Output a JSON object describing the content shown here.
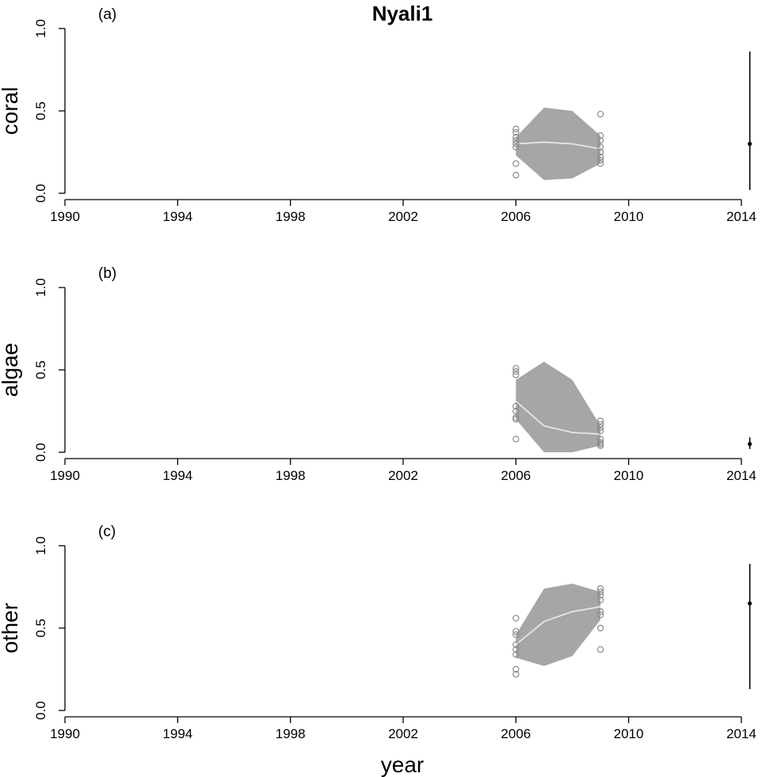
{
  "title": "Nyali1",
  "xlabel": "year",
  "colors": {
    "band": "#a6a6a6",
    "median_line": "#e6e6e6",
    "observed_points": "#8c8c8c",
    "estimate": "#000000"
  },
  "chart_data": [
    {
      "type": "area",
      "panel_label": "(a)",
      "ylabel": "coral",
      "xlim": [
        1990,
        2014
      ],
      "ylim": [
        0,
        1
      ],
      "x_ticks": [
        "1990",
        "1994",
        "1998",
        "2002",
        "2006",
        "2010",
        "2014"
      ],
      "y_ticks": [
        "0.0",
        "0.5",
        "1.0"
      ],
      "band": {
        "x": [
          2006,
          2007,
          2008,
          2009
        ],
        "lower": [
          0.23,
          0.08,
          0.09,
          0.18
        ],
        "upper": [
          0.34,
          0.52,
          0.5,
          0.35
        ],
        "median": [
          0.3,
          0.31,
          0.3,
          0.27
        ]
      },
      "points": [
        {
          "x": 2006,
          "y": [
            0.39,
            0.37,
            0.34,
            0.32,
            0.3,
            0.28,
            0.18,
            0.11
          ]
        },
        {
          "x": 2009,
          "y": [
            0.48,
            0.35,
            0.32,
            0.28,
            0.25,
            0.22,
            0.2,
            0.18
          ]
        }
      ],
      "estimate": {
        "x": 2014.3,
        "y": 0.3,
        "lower": 0.02,
        "upper": 0.86
      }
    },
    {
      "type": "area",
      "panel_label": "(b)",
      "ylabel": "algae",
      "xlim": [
        1990,
        2014
      ],
      "ylim": [
        0,
        1
      ],
      "x_ticks": [
        "1990",
        "1994",
        "1998",
        "2002",
        "2006",
        "2010",
        "2014"
      ],
      "y_ticks": [
        "0.0",
        "0.5",
        "1.0"
      ],
      "band": {
        "x": [
          2006,
          2007,
          2008,
          2009
        ],
        "lower": [
          0.2,
          0.0,
          0.0,
          0.04
        ],
        "upper": [
          0.44,
          0.55,
          0.44,
          0.16
        ],
        "median": [
          0.31,
          0.16,
          0.12,
          0.11
        ]
      },
      "points": [
        {
          "x": 2006,
          "y": [
            0.51,
            0.49,
            0.47,
            0.28,
            0.25,
            0.21,
            0.2,
            0.08
          ]
        },
        {
          "x": 2009,
          "y": [
            0.19,
            0.17,
            0.15,
            0.13,
            0.08,
            0.06,
            0.05,
            0.04
          ]
        }
      ],
      "estimate": {
        "x": 2014.3,
        "y": 0.05,
        "lower": 0.02,
        "upper": 0.09
      }
    },
    {
      "type": "area",
      "panel_label": "(c)",
      "ylabel": "other",
      "xlim": [
        1990,
        2014
      ],
      "ylim": [
        0,
        1
      ],
      "x_ticks": [
        "1990",
        "1994",
        "1998",
        "2002",
        "2006",
        "2010",
        "2014"
      ],
      "y_ticks": [
        "0.0",
        "0.5",
        "1.0"
      ],
      "band": {
        "x": [
          2006,
          2007,
          2008,
          2009
        ],
        "lower": [
          0.32,
          0.27,
          0.33,
          0.55
        ],
        "upper": [
          0.46,
          0.74,
          0.77,
          0.72
        ],
        "median": [
          0.4,
          0.54,
          0.6,
          0.63
        ]
      },
      "points": [
        {
          "x": 2006,
          "y": [
            0.56,
            0.48,
            0.46,
            0.4,
            0.37,
            0.34,
            0.25,
            0.22
          ]
        },
        {
          "x": 2009,
          "y": [
            0.74,
            0.72,
            0.7,
            0.67,
            0.6,
            0.58,
            0.5,
            0.37
          ]
        }
      ],
      "estimate": {
        "x": 2014.3,
        "y": 0.65,
        "lower": 0.13,
        "upper": 0.89
      }
    }
  ]
}
